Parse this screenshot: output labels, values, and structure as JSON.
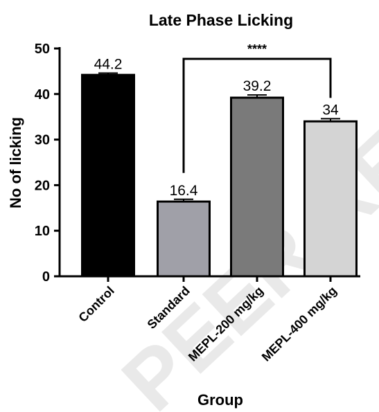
{
  "chart_data": {
    "type": "bar",
    "title": "Late Phase Licking",
    "xlabel": "Group",
    "ylabel": "No of licking",
    "categories": [
      "Control",
      "Standard",
      "MEPL-200 mg/kg",
      "MEPL-400 mg/kg"
    ],
    "values": [
      44.2,
      16.4,
      39.2,
      34
    ],
    "data_labels": [
      "44.2",
      "16.4",
      "39.2",
      "34"
    ],
    "errors": [
      0.4,
      0.5,
      0.6,
      0.6
    ],
    "bar_colors": [
      "#000000",
      "#a0a0a8",
      "#7a7a7a",
      "#d4d4d4"
    ],
    "ylim": [
      0,
      50
    ],
    "yticks": [
      0,
      10,
      20,
      30,
      40,
      50
    ],
    "significance": {
      "from": 1,
      "to": 3,
      "label": "****"
    },
    "grid": false
  },
  "watermark": {
    "text": "PEER REVIEW"
  }
}
